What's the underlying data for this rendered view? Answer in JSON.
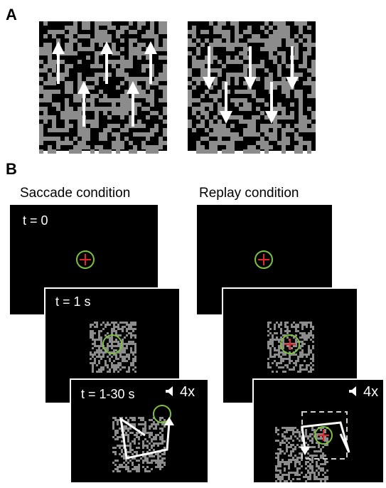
{
  "panel_a": {
    "label": "A",
    "stimuli": [
      {
        "motion": "up",
        "arrow_count": 5
      },
      {
        "motion": "down",
        "arrow_count": 5
      }
    ]
  },
  "panel_b": {
    "label": "B",
    "conditions": [
      {
        "title": "Saccade condition",
        "frames": [
          {
            "time_label": "t = 0"
          },
          {
            "time_label": "t = 1 s"
          },
          {
            "time_label": "t = 1-30 s",
            "speed_label": "4x"
          }
        ]
      },
      {
        "title": "Replay condition",
        "frames": [
          {
            "time_label": ""
          },
          {
            "time_label": ""
          },
          {
            "time_label": "",
            "speed_label": "4x"
          }
        ]
      }
    ]
  },
  "colors": {
    "background": "#000000",
    "dots": "#8c8c8c",
    "fixation_circle": "#7bc043",
    "fixation_cross": "#e3262b",
    "arrows": "#ffffff"
  }
}
